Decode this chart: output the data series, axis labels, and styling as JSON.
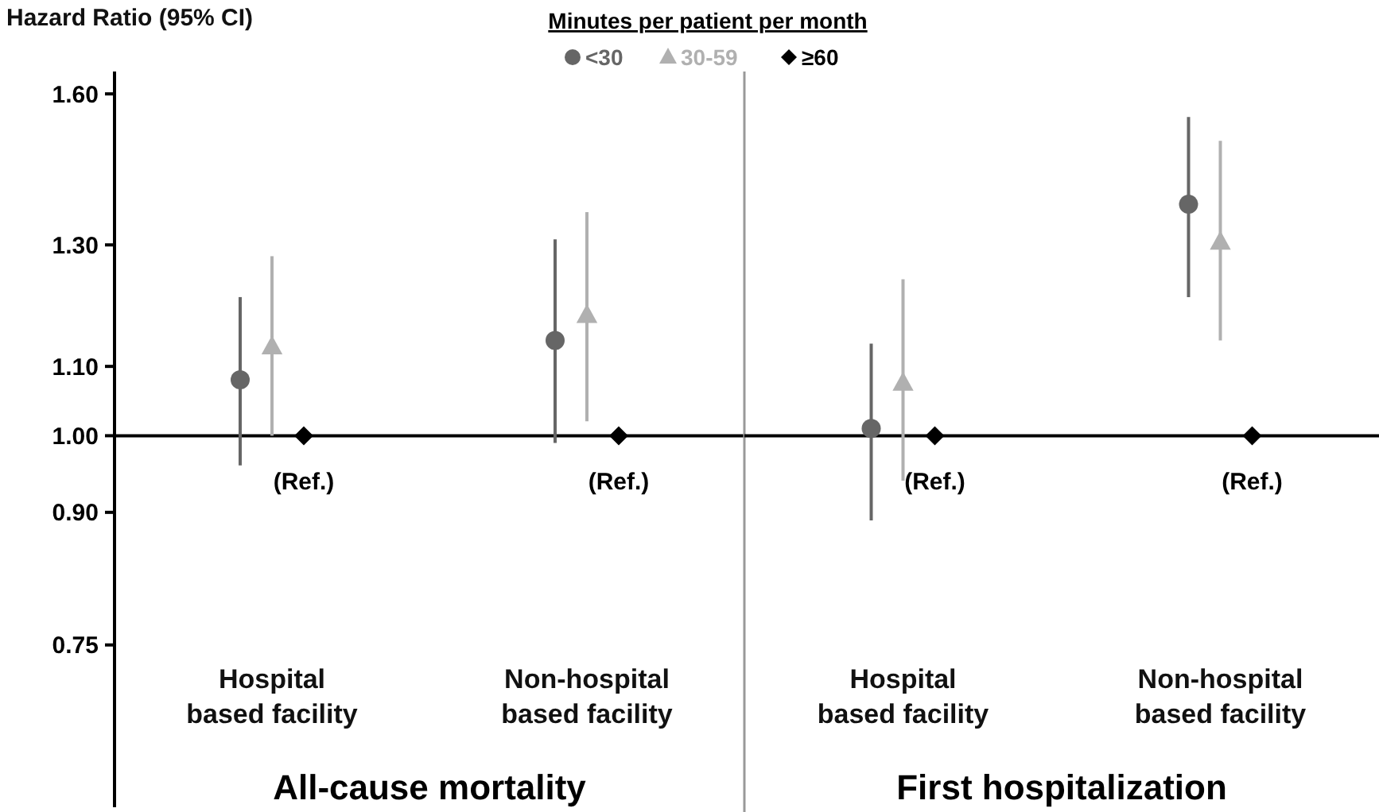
{
  "chart_data": [
    {
      "type": "scatter",
      "ylabel": "Hazard Ratio (95% CI)",
      "legend_title": "Minutes per patient per month",
      "legend": "top",
      "categories": [
        "Hospital based facility",
        "Non-hospital based facility"
      ],
      "series": [
        {
          "name": "<30",
          "color": "#666666",
          "marker": "circle",
          "values": [
            1.08,
            1.14
          ],
          "errors": [
            [
              0.96,
              1.21
            ],
            [
              0.99,
              1.31
            ]
          ]
        },
        {
          "name": "30-59",
          "color": "#b0b0b0",
          "marker": "triangle",
          "values": [
            1.13,
            1.18
          ],
          "errors": [
            [
              1.0,
              1.28
            ],
            [
              1.02,
              1.36
            ]
          ]
        },
        {
          "name": "≥60",
          "color": "#000000",
          "marker": "diamond",
          "values": [
            1,
            1
          ],
          "value_labels": [
            "(Ref.)",
            "(Ref.)"
          ]
        }
      ],
      "log": "y",
      "ylim": [
        0.6,
        1.65
      ],
      "yticks": [
        {
          "value": 0.75,
          "label": "0.75"
        },
        {
          "value": 0.9,
          "label": "0.90"
        },
        {
          "value": 1,
          "label": "1.00"
        },
        {
          "value": 1.1,
          "label": "1.10"
        },
        {
          "value": 1.3,
          "label": "1.30"
        },
        {
          "value": 1.6,
          "label": "1.60"
        }
      ],
      "ref_lines": [
        {
          "axis": "y",
          "value": 1,
          "color": "#000000"
        }
      ],
      "annotations": [
        "All-cause mortality"
      ]
    },
    {
      "type": "scatter",
      "categories": [
        "Hospital based facility",
        "Non-hospital based facility"
      ],
      "series": [
        {
          "color": "#666666",
          "marker": "circle",
          "values": [
            1.01,
            1.375
          ],
          "errors": [
            [
              0.89,
              1.135
            ],
            [
              1.21,
              1.55
            ]
          ]
        },
        {
          "color": "#b0b0b0",
          "marker": "triangle",
          "values": [
            1.075,
            1.305
          ],
          "errors": [
            [
              0.94,
              1.24
            ],
            [
              1.14,
              1.5
            ]
          ]
        },
        {
          "color": "#000000",
          "marker": "diamond",
          "values": [
            1,
            1
          ],
          "value_labels": [
            "(Ref.)",
            "(Ref.)"
          ]
        }
      ],
      "log": "y",
      "ylim": [
        0.6,
        1.65
      ],
      "tick_labels": "x",
      "ref_lines": [
        {
          "axis": "y",
          "value": 1,
          "color": "#000000"
        }
      ],
      "annotations": [
        "First hospitalization"
      ]
    }
  ]
}
